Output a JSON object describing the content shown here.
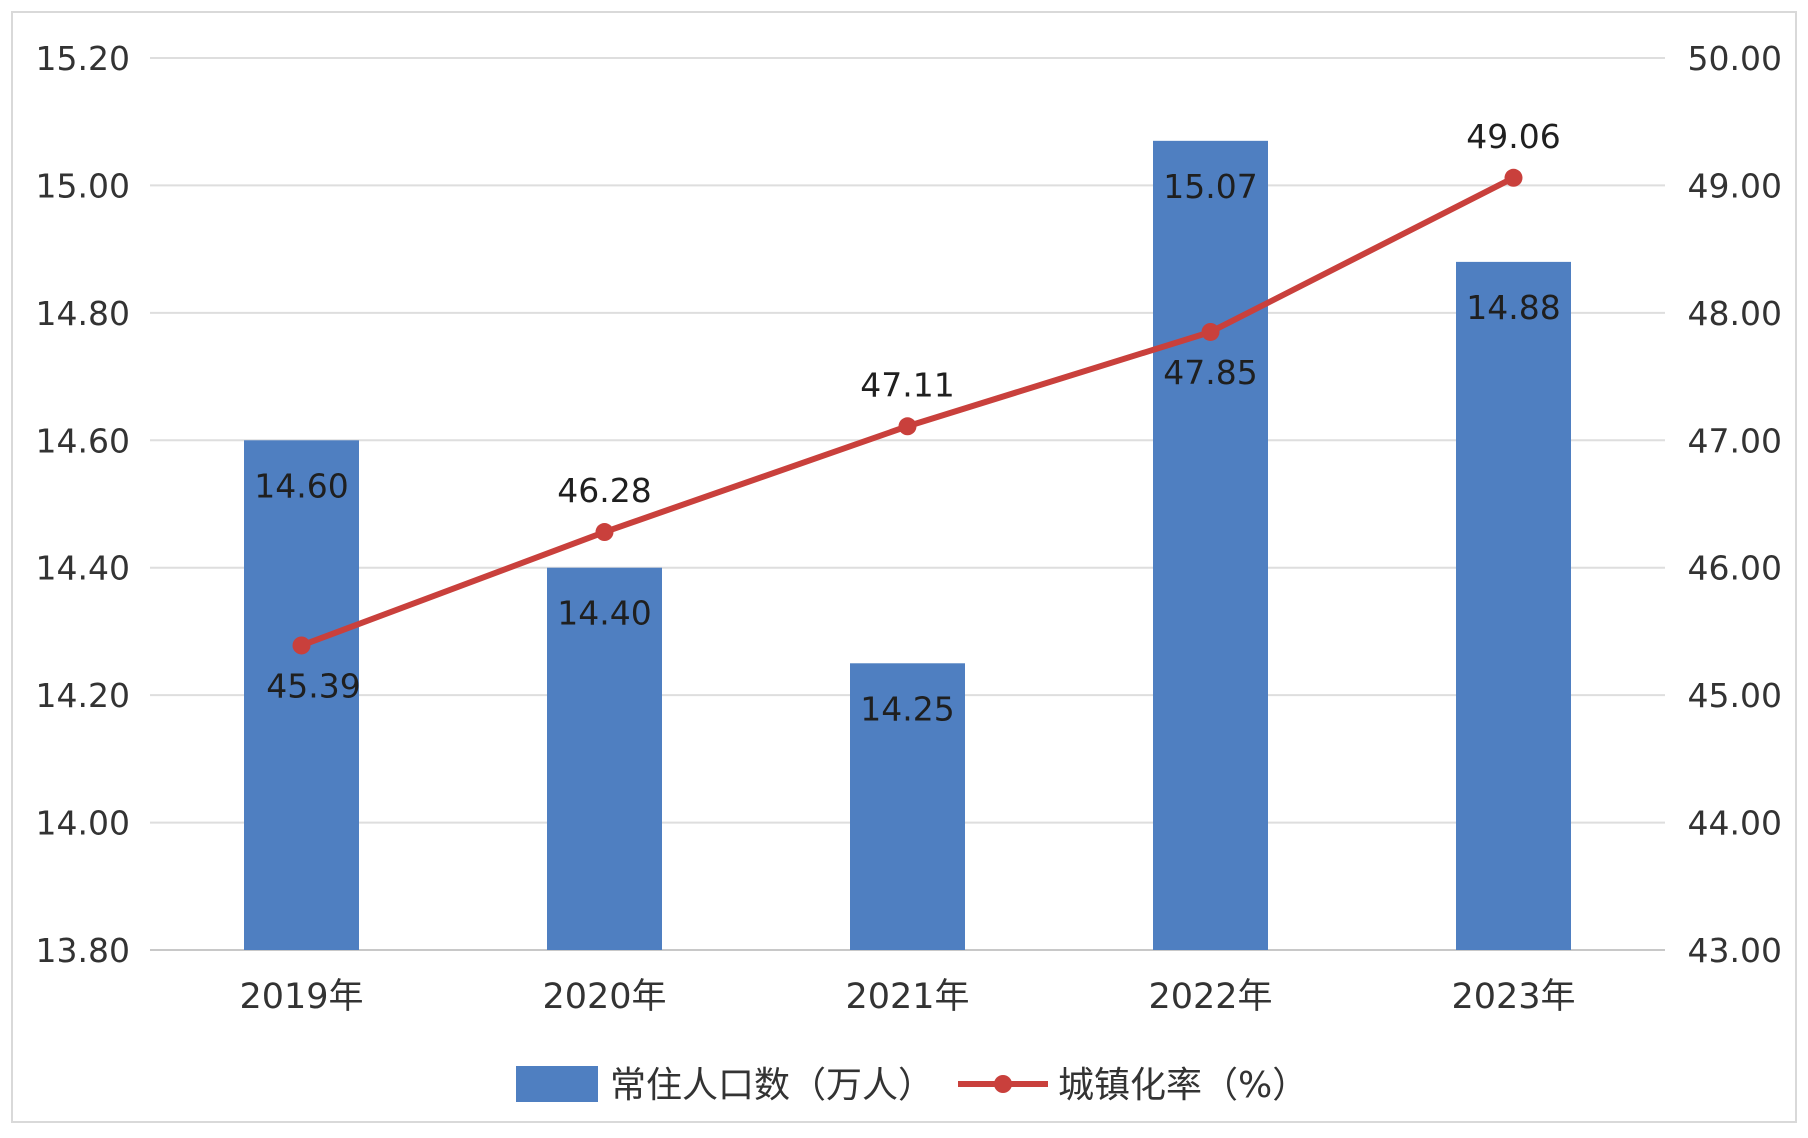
{
  "chart_data": {
    "type": "bar+line",
    "categories": [
      "2019年",
      "2020年",
      "2021年",
      "2022年",
      "2023年"
    ],
    "series": [
      {
        "name": "常住人口数（万人）",
        "type": "bar",
        "axis": "left",
        "values": [
          14.6,
          14.4,
          14.25,
          15.07,
          14.88
        ],
        "labels": [
          "14.60",
          "14.40",
          "14.25",
          "15.07",
          "14.88"
        ],
        "color": "#4f7fc1"
      },
      {
        "name": "城镇化率（%）",
        "type": "line",
        "axis": "right",
        "values": [
          45.39,
          46.28,
          47.11,
          47.85,
          49.06
        ],
        "labels": [
          "45.39",
          "46.28",
          "47.11",
          "47.85",
          "49.06"
        ],
        "color": "#c9403c"
      }
    ],
    "y_left": {
      "min": 13.8,
      "max": 15.2,
      "ticks": [
        "13.80",
        "14.00",
        "14.20",
        "14.40",
        "14.60",
        "14.80",
        "15.00",
        "15.20"
      ]
    },
    "y_right": {
      "min": 43.0,
      "max": 50.0,
      "ticks": [
        "43.00",
        "44.00",
        "45.00",
        "46.00",
        "47.00",
        "48.00",
        "49.00",
        "50.00"
      ]
    },
    "grid": true,
    "legend": "bottom"
  }
}
